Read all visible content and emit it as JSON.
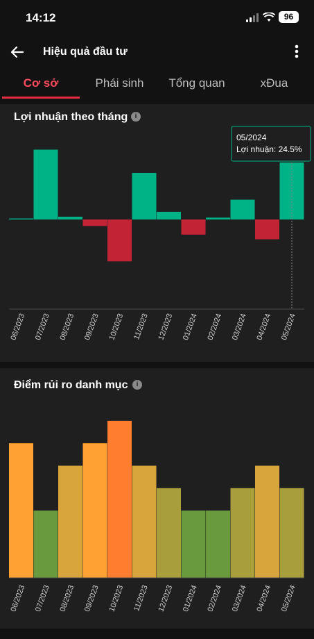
{
  "status_bar": {
    "time": "14:12",
    "battery": "96",
    "signal_icon": "cellular-signal-icon",
    "wifi_icon": "wifi-icon"
  },
  "app_bar": {
    "title": "Hiệu quả đầu tư",
    "back_icon": "arrow-left-icon",
    "more_icon": "more-vertical-icon"
  },
  "tabs": [
    {
      "label": "Cơ sở",
      "active": true
    },
    {
      "label": "Phái sinh",
      "active": false
    },
    {
      "label": "Tổng quan",
      "active": false
    },
    {
      "label": "xĐua",
      "active": false
    }
  ],
  "colors": {
    "accent": "#e62d40",
    "positive": "#00b386",
    "negative": "#c22335",
    "background": "#121212",
    "card": "#1f1f1f"
  },
  "monthly_profit": {
    "title": "Lợi nhuận theo tháng",
    "info_icon": "info-icon",
    "tooltip": {
      "date": "05/2024",
      "label": "Lợi nhuận: 24.5%"
    },
    "chart_data": {
      "type": "bar",
      "categories": [
        "06/2023",
        "07/2023",
        "08/2023",
        "09/2023",
        "10/2023",
        "11/2023",
        "12/2023",
        "01/2024",
        "02/2024",
        "03/2024",
        "04/2024",
        "05/2024"
      ],
      "values": [
        0.3,
        30.0,
        1.2,
        -2.8,
        -18.0,
        20.0,
        3.3,
        -6.5,
        0.8,
        8.5,
        -8.5,
        24.5
      ],
      "highlighted_category": "05/2024",
      "ylim": [
        -37,
        37
      ],
      "grid": false
    }
  },
  "risk_score": {
    "title": "Điểm rủi ro danh mục",
    "info_icon": "info-icon",
    "chart_data": {
      "type": "bar",
      "categories": [
        "06/2023",
        "07/2023",
        "08/2023",
        "09/2023",
        "10/2023",
        "11/2023",
        "12/2023",
        "01/2024",
        "02/2024",
        "03/2024",
        "04/2024",
        "05/2024"
      ],
      "values": [
        6,
        3,
        5,
        6,
        7,
        5,
        4,
        3,
        3,
        4,
        5,
        4
      ],
      "bar_colors": [
        "#ffa133",
        "#6a9a3e",
        "#d7a53b",
        "#ffa133",
        "#ff7d2e",
        "#d7a53b",
        "#a89e3c",
        "#6a9a3e",
        "#6a9a3e",
        "#a89e3c",
        "#d7a53b",
        "#a89e3c"
      ],
      "ylim": [
        0,
        7
      ],
      "grid": false
    }
  }
}
